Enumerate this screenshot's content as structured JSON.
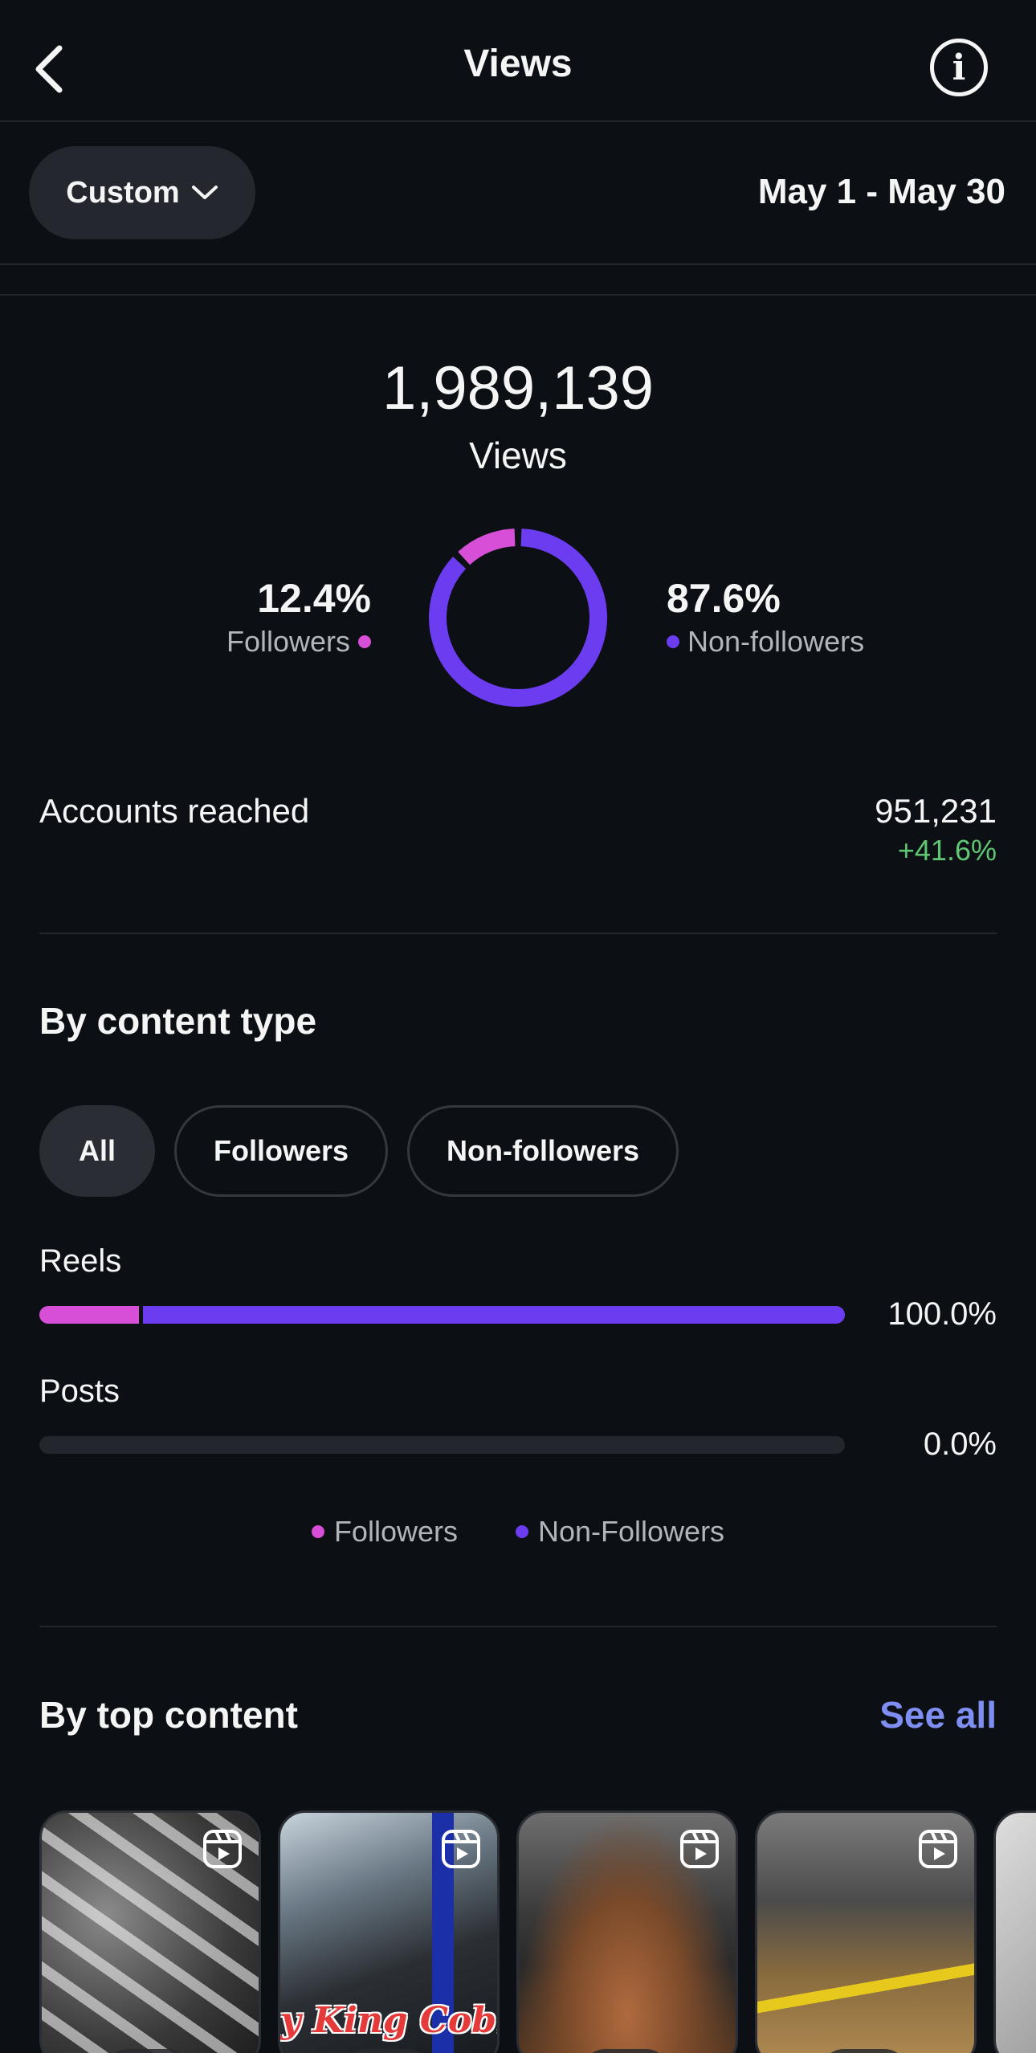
{
  "header": {
    "title": "Views"
  },
  "filter": {
    "range_label": "Custom",
    "date_range": "May 1 - May 30"
  },
  "summary": {
    "total": "1,989,139",
    "label": "Views",
    "followers_pct": "12.4%",
    "followers_label": "Followers",
    "nonfollowers_pct": "87.6%",
    "nonfollowers_label": "Non-followers",
    "followers_fraction": 0.124,
    "nonfollowers_fraction": 0.876
  },
  "accounts": {
    "label": "Accounts reached",
    "value": "951,231",
    "change": "+41.6%"
  },
  "content_type": {
    "title": "By content type",
    "chips": [
      "All",
      "Followers",
      "Non-followers"
    ],
    "active_chip": "All",
    "rows": [
      {
        "label": "Reels",
        "value": "100.0%",
        "followers_fraction": 0.124,
        "nonfollowers_fraction": 0.876
      },
      {
        "label": "Posts",
        "value": "0.0%",
        "followers_fraction": 0,
        "nonfollowers_fraction": 0
      }
    ],
    "legend": [
      "Followers",
      "Non-Followers"
    ]
  },
  "top_content": {
    "title": "By top content",
    "see_all": "See all",
    "items": [
      {
        "caption": ""
      },
      {
        "caption": "y King Cobra"
      },
      {
        "caption": ""
      },
      {
        "caption": ""
      }
    ]
  },
  "colors": {
    "followers": "#d64fd6",
    "nonfollowers": "#6c3df0",
    "positive": "#5fc773",
    "link": "#7e8ef1"
  },
  "icons": {
    "back": "chevron-left-icon",
    "info": "info-icon",
    "dropdown": "chevron-down-icon",
    "reel": "reels-icon"
  }
}
